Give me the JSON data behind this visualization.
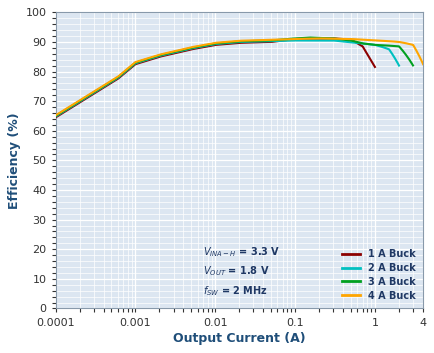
{
  "title": "",
  "xlabel": "Output Current (A)",
  "ylabel": "Efficiency (%)",
  "xlim": [
    0.0001,
    4
  ],
  "ylim": [
    0,
    100
  ],
  "yticks": [
    0,
    10,
    20,
    30,
    40,
    50,
    60,
    70,
    80,
    90,
    100
  ],
  "background_color": "#ffffff",
  "plot_bg_color": "#dce6f1",
  "grid_color": "#ffffff",
  "series": [
    {
      "label": "1 A Buck",
      "color": "#8B0000",
      "max_current": 1.0
    },
    {
      "label": "2 A Buck",
      "color": "#00C0C0",
      "max_current": 2.0
    },
    {
      "label": "3 A Buck",
      "color": "#00A020",
      "max_current": 3.0
    },
    {
      "label": "4 A Buck",
      "color": "#FFA500",
      "max_current": 4.0
    }
  ],
  "annotation": "V_{INA-H} = 3.3 V\nV_{OUT} = 1.8 V\nf_{SW} = 2 MHz",
  "annotation_color": "#1F3864",
  "xlabel_color": "#1F4E79",
  "ylabel_color": "#1F4E79",
  "legend_color": "#1F3864"
}
